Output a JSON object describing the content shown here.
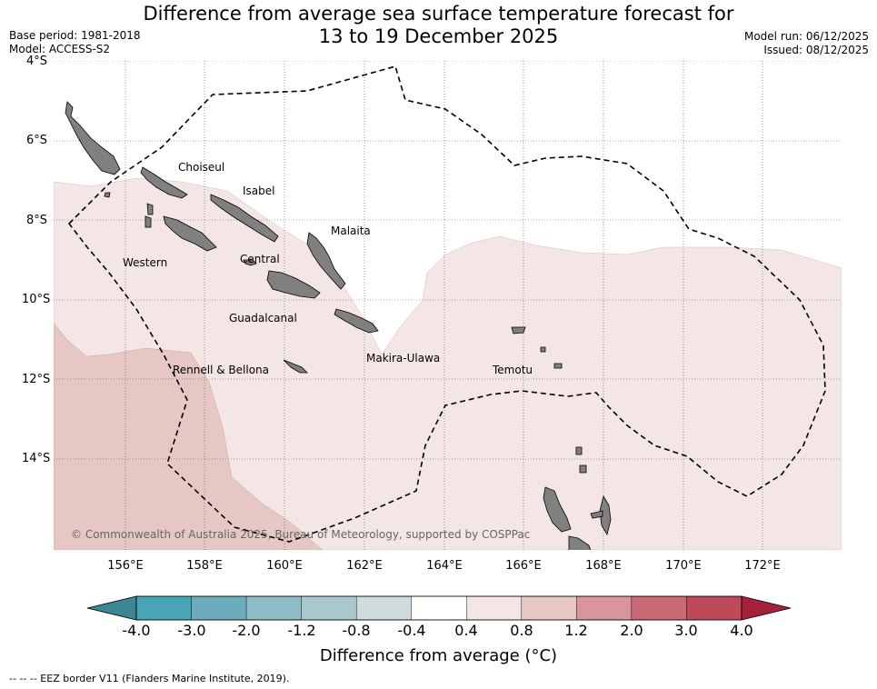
{
  "title": {
    "line1": "Difference from average sea surface temperature forecast for",
    "line2": "13 to 19 December 2025"
  },
  "meta": {
    "base_period": "Base period: 1981-2018",
    "model": "Model: ACCESS-S2",
    "model_run": "Model run: 06/12/2025",
    "issued": "Issued: 08/12/2025"
  },
  "map": {
    "lat_labels": [
      "4°S",
      "6°S",
      "8°S",
      "10°S",
      "12°S",
      "14°S"
    ],
    "lon_labels": [
      "156°E",
      "158°E",
      "160°E",
      "162°E",
      "164°E",
      "166°E",
      "168°E",
      "170°E",
      "172°E"
    ],
    "provinces": [
      "Choiseul",
      "Isabel",
      "Malaita",
      "Western",
      "Central",
      "Guadalcanal",
      "Makira-Ulawa",
      "Rennell & Bellona",
      "Temotu"
    ],
    "credit": "© Commonwealth of Australia 2025, Bureau of Meteorology, supported by COSPPac",
    "colors": {
      "ocean_neutral": "#ffffff",
      "warm_light": "#f4e6e5",
      "warm_medium": "#e6c7c3",
      "land": "#808080"
    }
  },
  "colorbar": {
    "ticks": [
      "-4.0",
      "-3.0",
      "-2.0",
      "-1.2",
      "-0.8",
      "-0.4",
      "0.4",
      "0.8",
      "1.2",
      "2.0",
      "3.0",
      "4.0"
    ],
    "colors": [
      "#3b8796",
      "#49a4b4",
      "#6dadbb",
      "#8fbcc6",
      "#aac8cc",
      "#cfdbdd",
      "#ffffff",
      "#f4e6e5",
      "#e6c7c3",
      "#d8959b",
      "#c96a74",
      "#be4a59",
      "#a7203a"
    ],
    "title": "Difference from average (°C)"
  },
  "footer": "--  --  -- EEZ border V11 (Flanders Marine Institute, 2019)."
}
